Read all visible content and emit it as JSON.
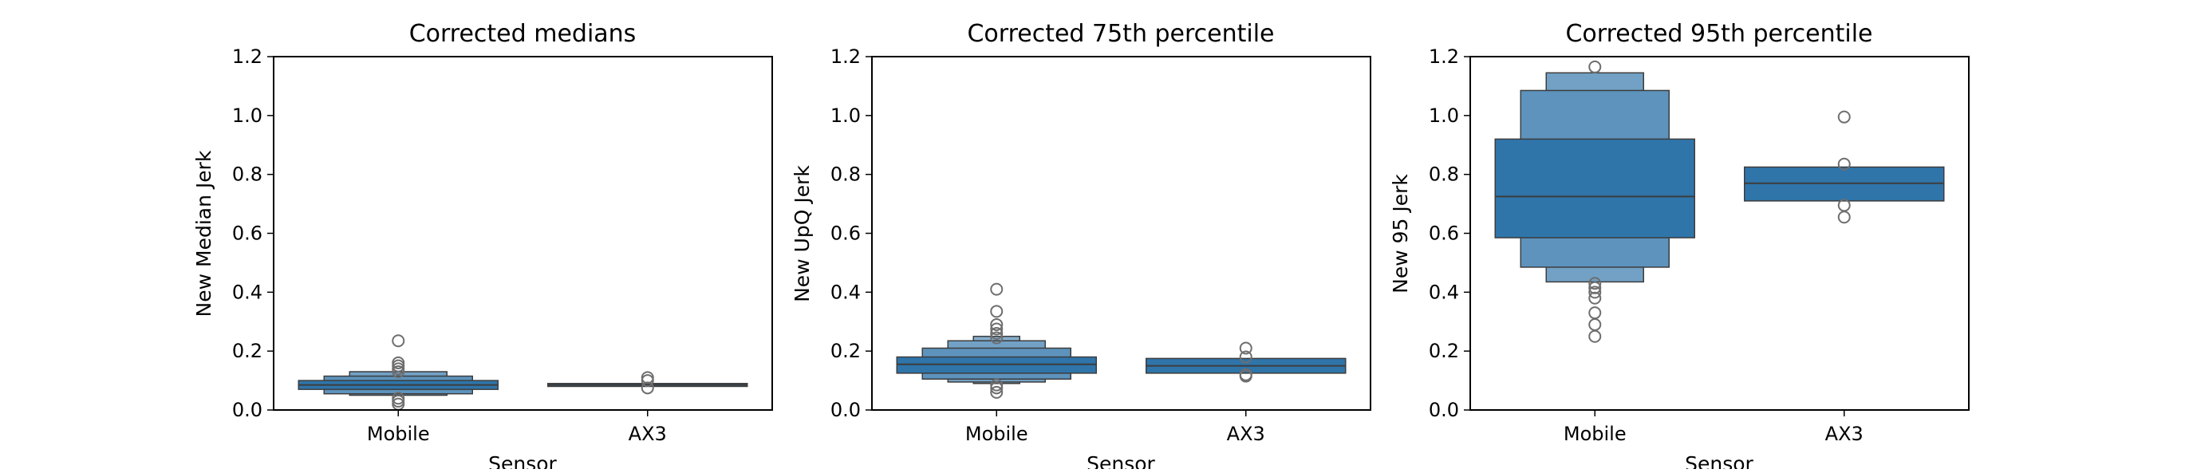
{
  "chart_data": [
    {
      "type": "boxen",
      "title": "Corrected medians",
      "xlabel": "Sensor",
      "ylabel": "New Median Jerk",
      "ylim": [
        0,
        1.2
      ],
      "yticks": [
        "0.0",
        "0.2",
        "0.4",
        "0.6",
        "0.8",
        "1.0",
        "1.2"
      ],
      "categories": [
        "Mobile",
        "AX3"
      ],
      "color": "#2f75aa",
      "groups": [
        {
          "category": "Mobile",
          "median": 0.085,
          "levels": [
            [
              0.07,
              0.1
            ],
            [
              0.055,
              0.115
            ],
            [
              0.05,
              0.13
            ]
          ],
          "outliers": [
            0.235,
            0.16,
            0.15,
            0.14,
            0.13,
            0.04,
            0.03,
            0.02
          ]
        },
        {
          "category": "AX3",
          "median": 0.085,
          "levels": [
            [
              0.08,
              0.09
            ]
          ],
          "outliers": [
            0.11,
            0.1,
            0.075
          ]
        }
      ]
    },
    {
      "type": "boxen",
      "title": "Corrected 75th percentile",
      "xlabel": "Sensor",
      "ylabel": "New UpQ Jerk",
      "ylim": [
        0,
        1.2
      ],
      "yticks": [
        "0.0",
        "0.2",
        "0.4",
        "0.6",
        "0.8",
        "1.0",
        "1.2"
      ],
      "categories": [
        "Mobile",
        "AX3"
      ],
      "color": "#2f75aa",
      "groups": [
        {
          "category": "Mobile",
          "median": 0.155,
          "levels": [
            [
              0.125,
              0.18
            ],
            [
              0.105,
              0.21
            ],
            [
              0.095,
              0.235
            ],
            [
              0.09,
              0.25
            ]
          ],
          "outliers": [
            0.41,
            0.335,
            0.29,
            0.275,
            0.26,
            0.245,
            0.085,
            0.075,
            0.06
          ]
        },
        {
          "category": "AX3",
          "median": 0.15,
          "levels": [
            [
              0.125,
              0.175
            ]
          ],
          "outliers": [
            0.21,
            0.18,
            0.12,
            0.115
          ]
        }
      ]
    },
    {
      "type": "boxen",
      "title": "Corrected 95th percentile",
      "xlabel": "Sensor",
      "ylabel": "New 95 Jerk",
      "ylim": [
        0,
        1.2
      ],
      "yticks": [
        "0.0",
        "0.2",
        "0.4",
        "0.6",
        "0.8",
        "1.0",
        "1.2"
      ],
      "categories": [
        "Mobile",
        "AX3"
      ],
      "color": "#2f75aa",
      "groups": [
        {
          "category": "Mobile",
          "median": 0.725,
          "levels": [
            [
              0.585,
              0.92
            ],
            [
              0.485,
              1.085
            ],
            [
              0.435,
              1.145
            ]
          ],
          "outliers": [
            1.165,
            0.43,
            0.415,
            0.4,
            0.38,
            0.33,
            0.29,
            0.25
          ]
        },
        {
          "category": "AX3",
          "median": 0.77,
          "levels": [
            [
              0.71,
              0.825
            ]
          ],
          "outliers": [
            0.995,
            0.835,
            0.695,
            0.655
          ]
        }
      ]
    }
  ]
}
